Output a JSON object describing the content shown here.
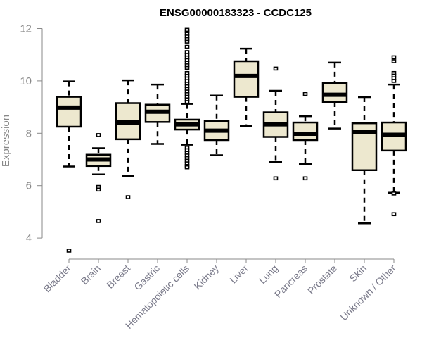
{
  "chart_data": {
    "type": "boxplot",
    "title": "ENSG00000183323 - CCDC125",
    "xlabel": "",
    "ylabel": "Expression",
    "ylim": [
      3.3,
      12
    ],
    "yticks": [
      4,
      6,
      8,
      10,
      12
    ],
    "grid": false,
    "colors": {
      "box_fill": "#ede8cf",
      "stroke": "#000000",
      "axis": "#888888"
    },
    "categories": [
      "Bladder",
      "Brain",
      "Breast",
      "Gastric",
      "Hematopoietic cells",
      "Kidney",
      "Liver",
      "Lung",
      "Pancreas",
      "Prostate",
      "Skin",
      "Unknown / Other"
    ],
    "boxes": [
      {
        "whislo": 6.73,
        "q1": 8.25,
        "med": 8.98,
        "q3": 9.39,
        "whishi": 9.98,
        "fliers": [
          3.52
        ]
      },
      {
        "whislo": 6.43,
        "q1": 6.75,
        "med": 7.0,
        "q3": 7.18,
        "whishi": 7.43,
        "fliers": [
          7.93,
          5.95,
          5.85,
          4.65
        ]
      },
      {
        "whislo": 6.37,
        "q1": 7.77,
        "med": 8.41,
        "q3": 9.15,
        "whishi": 10.02,
        "fliers": [
          5.56
        ]
      },
      {
        "whislo": 7.59,
        "q1": 8.43,
        "med": 8.82,
        "q3": 9.09,
        "whishi": 9.86,
        "fliers": []
      },
      {
        "whislo": 7.56,
        "q1": 8.14,
        "med": 8.34,
        "q3": 8.52,
        "whishi": 9.12,
        "fliers": [
          9.2,
          9.3,
          9.4,
          9.5,
          9.6,
          9.7,
          9.8,
          9.9,
          10.0,
          10.1,
          10.2,
          10.3,
          10.5,
          10.6,
          10.7,
          10.8,
          10.9,
          11.0,
          11.1,
          11.3,
          11.5,
          11.6,
          11.7,
          11.8,
          11.9,
          11.95,
          7.45,
          7.35,
          7.25,
          7.15,
          7.05,
          6.95,
          6.85,
          6.75,
          6.7
        ]
      },
      {
        "whislo": 7.16,
        "q1": 7.74,
        "med": 8.1,
        "q3": 8.47,
        "whishi": 9.44,
        "fliers": []
      },
      {
        "whislo": 8.28,
        "q1": 9.39,
        "med": 10.19,
        "q3": 10.75,
        "whishi": 11.23,
        "fliers": []
      },
      {
        "whislo": 6.91,
        "q1": 7.86,
        "med": 8.34,
        "q3": 8.8,
        "whishi": 9.62,
        "fliers": [
          10.47,
          6.28
        ]
      },
      {
        "whislo": 6.83,
        "q1": 7.74,
        "med": 7.98,
        "q3": 8.41,
        "whishi": 8.65,
        "fliers": [
          9.5,
          6.28
        ]
      },
      {
        "whislo": 8.18,
        "q1": 9.19,
        "med": 9.47,
        "q3": 9.92,
        "whishi": 10.7,
        "fliers": []
      },
      {
        "whislo": 4.56,
        "q1": 6.59,
        "med": 8.04,
        "q3": 8.38,
        "whishi": 9.38,
        "fliers": []
      },
      {
        "whislo": 5.73,
        "q1": 7.34,
        "med": 7.94,
        "q3": 8.41,
        "whishi": 9.86,
        "fliers": [
          10.9,
          10.75,
          10.3,
          10.2,
          10.1,
          10.0,
          5.7,
          4.91
        ]
      }
    ]
  }
}
